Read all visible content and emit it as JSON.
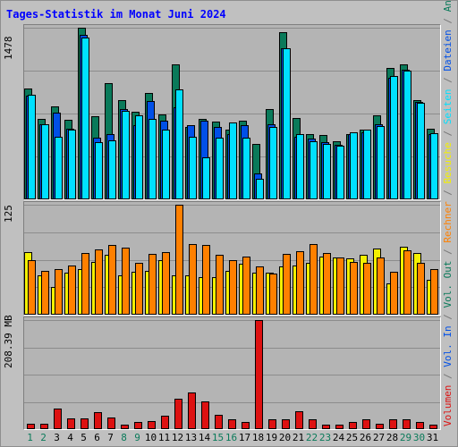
{
  "title": "Tages-Statistik im Monat Juni 2024",
  "colors": {
    "anfragen": "#0a7a5a",
    "dateien": "#0050e8",
    "seiten": "#00e0ff",
    "besuche": "#f4f000",
    "rechner": "#ff8000",
    "volumen": "#dd1111",
    "weekend_day": "#0a7a5a",
    "weekday": "#000000"
  },
  "legend": [
    {
      "text": "Volumen",
      "color": "#dd1111"
    },
    {
      "text": " / ",
      "color": "#777777"
    },
    {
      "text": "Vol. In",
      "color": "#0050e8"
    },
    {
      "text": " / ",
      "color": "#777777"
    },
    {
      "text": "Vol. Out",
      "color": "#0a7a5a"
    },
    {
      "text": " / ",
      "color": "#777777"
    },
    {
      "text": "Rechner",
      "color": "#ff8000"
    },
    {
      "text": " / ",
      "color": "#777777"
    },
    {
      "text": "Besuche",
      "color": "#f4f000"
    },
    {
      "text": " / ",
      "color": "#777777"
    },
    {
      "text": "Seiten",
      "color": "#00e0ff"
    },
    {
      "text": " / ",
      "color": "#777777"
    },
    {
      "text": "Dateien",
      "color": "#0050e8"
    },
    {
      "text": " / ",
      "color": "#777777"
    },
    {
      "text": "Anfragen",
      "color": "#0a7a5a"
    }
  ],
  "chart_data": [
    {
      "type": "bar",
      "ymax_label": "1478",
      "ylim": [
        0,
        1478
      ],
      "categories": [
        "1",
        "2",
        "3",
        "4",
        "5",
        "6",
        "7",
        "8",
        "9",
        "10",
        "11",
        "12",
        "13",
        "14",
        "15",
        "16",
        "17",
        "18",
        "19",
        "20",
        "21",
        "22",
        "23",
        "24",
        "25",
        "26",
        "27",
        "28",
        "29",
        "30",
        "31"
      ],
      "weekend": [
        true,
        true,
        false,
        false,
        false,
        false,
        false,
        true,
        true,
        false,
        false,
        false,
        false,
        false,
        true,
        true,
        false,
        false,
        false,
        false,
        false,
        true,
        true,
        false,
        false,
        false,
        false,
        false,
        true,
        true,
        false
      ],
      "series": [
        {
          "name": "Anfragen",
          "values": [
            958,
            690,
            803,
            682,
            1478,
            714,
            1001,
            854,
            754,
            916,
            731,
            1160,
            626,
            689,
            673,
            603,
            674,
            474,
            775,
            1438,
            700,
            563,
            552,
            501,
            563,
            602,
            725,
            1133,
            1166,
            858,
            609
          ]
        },
        {
          "name": "Dateien",
          "values": [
            890,
            650,
            750,
            610,
            1420,
            530,
            560,
            780,
            640,
            850,
            680,
            790,
            640,
            680,
            620,
            560,
            640,
            220,
            650,
            1300,
            540,
            520,
            490,
            470,
            560,
            580,
            650,
            1050,
            1120,
            840,
            560
          ]
        },
        {
          "name": "Seiten",
          "values": [
            904,
            650,
            540,
            600,
            1390,
            490,
            510,
            760,
            720,
            690,
            600,
            950,
            540,
            360,
            530,
            660,
            530,
            180,
            620,
            1300,
            560,
            500,
            480,
            460,
            580,
            600,
            630,
            1060,
            1110,
            830,
            570
          ]
        }
      ]
    },
    {
      "type": "bar",
      "ymax_label": "125",
      "ylim": [
        0,
        125
      ],
      "categories": [
        "1",
        "2",
        "3",
        "4",
        "5",
        "6",
        "7",
        "8",
        "9",
        "10",
        "11",
        "12",
        "13",
        "14",
        "15",
        "16",
        "17",
        "18",
        "19",
        "20",
        "21",
        "22",
        "23",
        "24",
        "25",
        "26",
        "27",
        "28",
        "29",
        "30",
        "31"
      ],
      "series": [
        {
          "name": "Besuche",
          "values": [
            71,
            45,
            31,
            48,
            52,
            60,
            68,
            45,
            49,
            50,
            62,
            45,
            45,
            43,
            43,
            50,
            58,
            48,
            48,
            55,
            56,
            59,
            66,
            65,
            64,
            68,
            75,
            36,
            77,
            70,
            40
          ]
        },
        {
          "name": "Rechner",
          "values": [
            62,
            50,
            52,
            56,
            70,
            74,
            79,
            76,
            59,
            69,
            71,
            125,
            80,
            79,
            68,
            62,
            66,
            55,
            47,
            69,
            72,
            80,
            70,
            65,
            60,
            59,
            65,
            49,
            73,
            59,
            52
          ]
        }
      ]
    },
    {
      "type": "bar",
      "ymax_label": "208.39 MB",
      "ylim": [
        0,
        208.39
      ],
      "categories": [
        "1",
        "2",
        "3",
        "4",
        "5",
        "6",
        "7",
        "8",
        "9",
        "10",
        "11",
        "12",
        "13",
        "14",
        "15",
        "16",
        "17",
        "18",
        "19",
        "20",
        "21",
        "22",
        "23",
        "24",
        "25",
        "26",
        "27",
        "28",
        "29",
        "30",
        "31"
      ],
      "series": [
        {
          "name": "Volumen",
          "values": [
            10,
            10,
            39,
            20,
            20,
            33,
            23,
            8,
            14,
            15,
            25,
            58,
            70,
            53,
            27,
            18,
            14,
            208.39,
            19,
            18,
            34,
            18,
            8,
            8,
            13,
            19,
            10,
            19,
            18,
            13,
            8
          ]
        }
      ]
    }
  ]
}
